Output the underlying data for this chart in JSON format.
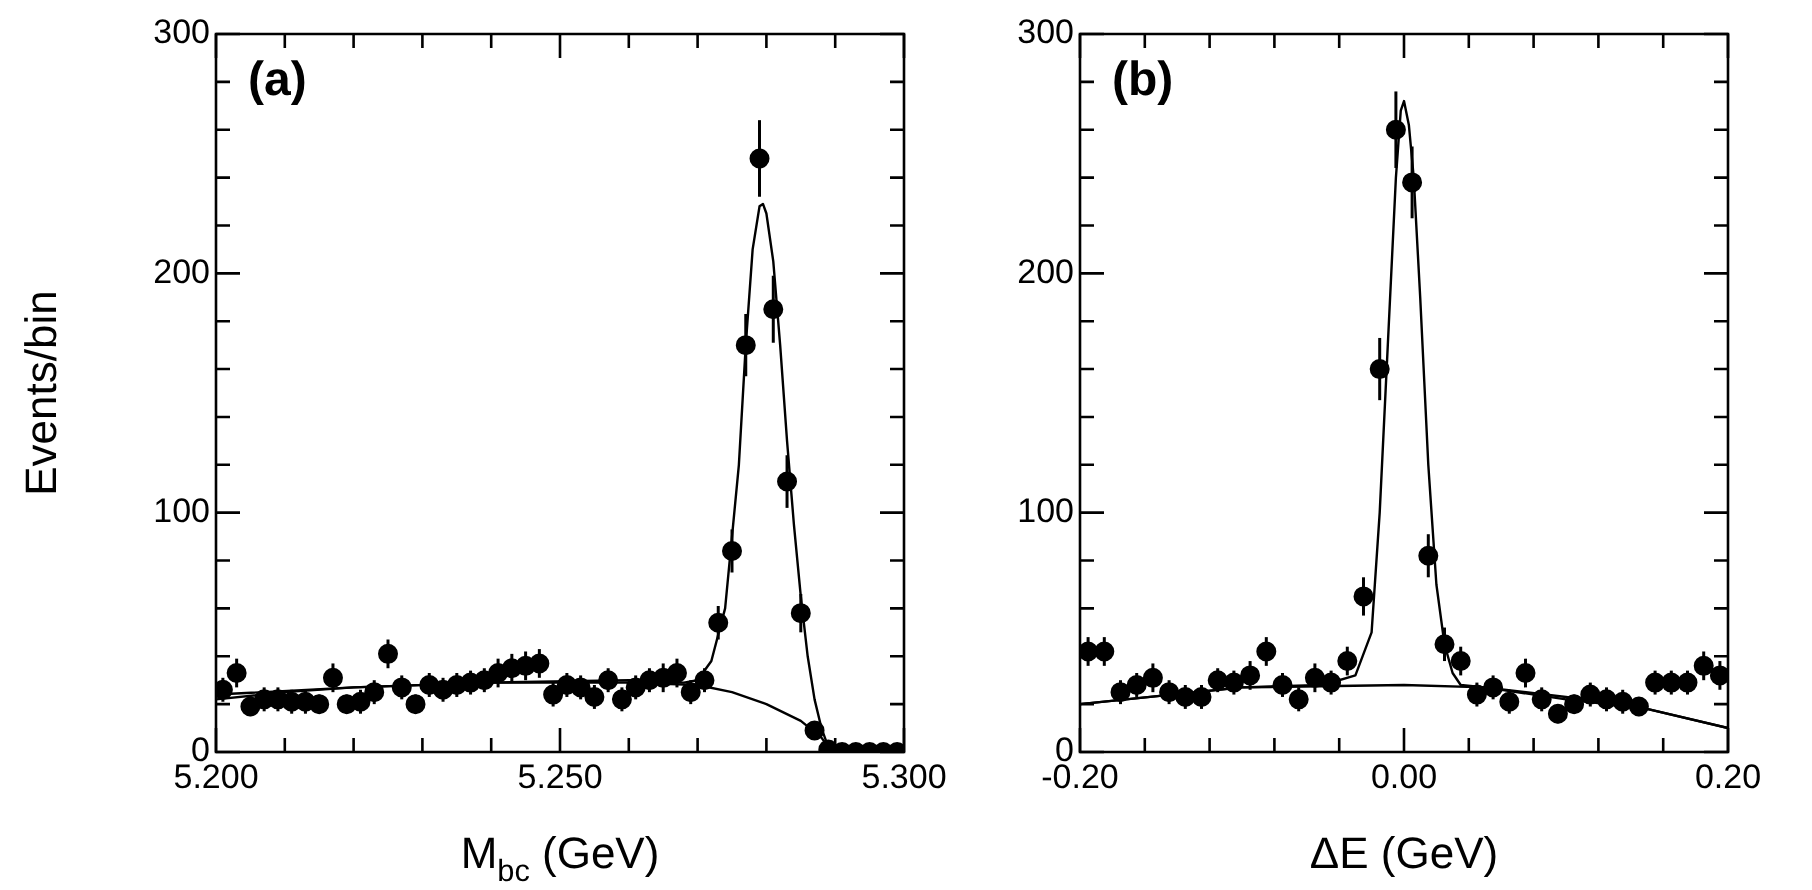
{
  "chart_data": [
    {
      "type": "scatter",
      "xlabel": "M$_{bc}$ (GeV)",
      "ylabel": "Events/bin",
      "annotations": [
        "(a)"
      ],
      "xlim": [
        5.2,
        5.3
      ],
      "xticks": [
        {
          "value": 5.2,
          "label": "5.200"
        },
        {
          "value": 5.21,
          "label": null
        },
        {
          "value": 5.22,
          "label": null
        },
        {
          "value": 5.23,
          "label": null
        },
        {
          "value": 5.24,
          "label": null
        },
        {
          "value": 5.25,
          "label": "5.250"
        },
        {
          "value": 5.26,
          "label": null
        },
        {
          "value": 5.27,
          "label": null
        },
        {
          "value": 5.28,
          "label": null
        },
        {
          "value": 5.29,
          "label": null
        },
        {
          "value": 5.3,
          "label": "5.300"
        }
      ],
      "ylim": [
        0,
        300
      ],
      "yticks": [
        0,
        {
          "value": 20,
          "label": null
        },
        {
          "value": 40,
          "label": null
        },
        {
          "value": 60,
          "label": null
        },
        {
          "value": 80,
          "label": null
        },
        100,
        {
          "value": 120,
          "label": null
        },
        {
          "value": 140,
          "label": null
        },
        {
          "value": 160,
          "label": null
        },
        {
          "value": 180,
          "label": null
        },
        200,
        {
          "value": 220,
          "label": null
        },
        {
          "value": 240,
          "label": null
        },
        {
          "value": 260,
          "label": null
        },
        {
          "value": 280,
          "label": null
        },
        300
      ],
      "series": [
        {
          "marker": "circle",
          "color": "#000000",
          "x": [
            5.201,
            5.203,
            5.205,
            5.207,
            5.209,
            5.211,
            5.213,
            5.215,
            5.217,
            5.219,
            5.221,
            5.223,
            5.225,
            5.227,
            5.229,
            5.231,
            5.233,
            5.235,
            5.237,
            5.239,
            5.241,
            5.243,
            5.245,
            5.247,
            5.249,
            5.251,
            5.253,
            5.255,
            5.257,
            5.259,
            5.261,
            5.263,
            5.265,
            5.267,
            5.269,
            5.271,
            5.273,
            5.275,
            5.277,
            5.279,
            5.281,
            5.283,
            5.285,
            5.287,
            5.289,
            5.291,
            5.293,
            5.295,
            5.297,
            5.299
          ],
          "values": [
            26,
            33,
            19,
            22,
            22,
            21,
            21,
            20,
            31,
            20,
            21,
            25,
            41,
            27,
            20,
            28,
            26,
            28,
            29,
            30,
            33,
            35,
            36,
            37,
            24,
            28,
            27,
            23,
            30,
            22,
            27,
            30,
            31,
            33,
            25,
            30,
            54,
            84,
            170,
            248,
            185,
            113,
            58,
            9,
            1,
            0,
            0,
            0,
            0,
            0
          ],
          "errors": [
            5,
            6,
            4,
            5,
            5,
            5,
            5,
            4,
            6,
            4,
            5,
            5,
            6,
            5,
            4,
            5,
            5,
            5,
            5,
            5,
            6,
            6,
            6,
            6,
            5,
            5,
            5,
            5,
            5,
            5,
            5,
            5,
            6,
            6,
            5,
            5,
            7,
            9,
            13,
            16,
            14,
            11,
            8,
            3,
            1,
            null,
            null,
            null,
            null,
            null
          ]
        },
        {
          "type": "line",
          "marker": "none",
          "color": "#000000",
          "x": [
            5.2,
            5.22,
            5.24,
            5.26,
            5.268,
            5.27,
            5.272,
            5.274,
            5.276,
            5.277,
            5.278,
            5.279,
            5.2795,
            5.28,
            5.281,
            5.282,
            5.283,
            5.284,
            5.285,
            5.286,
            5.287,
            5.288,
            5.289,
            5.29,
            5.3
          ],
          "values": [
            24,
            27,
            29,
            30,
            29,
            30,
            38,
            60,
            120,
            170,
            210,
            228,
            229,
            225,
            205,
            170,
            130,
            95,
            65,
            40,
            22,
            10,
            2,
            0,
            0
          ]
        },
        {
          "type": "line",
          "marker": "none",
          "color": "#000000",
          "x": [
            5.2,
            5.21,
            5.22,
            5.24,
            5.26,
            5.27,
            5.275,
            5.28,
            5.285,
            5.288,
            5.2895
          ],
          "values": [
            22,
            25,
            27,
            29,
            29,
            28,
            25,
            20,
            13,
            6,
            0
          ]
        }
      ]
    },
    {
      "type": "scatter",
      "xlabel": "ΔE (GeV)",
      "annotations": [
        "(b)"
      ],
      "xlim": [
        -0.2,
        0.2
      ],
      "xticks": [
        {
          "value": -0.2,
          "label": "-0.20"
        },
        {
          "value": -0.16,
          "label": null
        },
        {
          "value": -0.12,
          "label": null
        },
        {
          "value": -0.08,
          "label": null
        },
        {
          "value": -0.04,
          "label": null
        },
        {
          "value": 0,
          "label": "0.00"
        },
        {
          "value": 0.04,
          "label": null
        },
        {
          "value": 0.08,
          "label": null
        },
        {
          "value": 0.12,
          "label": null
        },
        {
          "value": 0.16,
          "label": null
        },
        {
          "value": 0.2,
          "label": "0.20"
        }
      ],
      "ylim": [
        0,
        300
      ],
      "yticks": [
        0,
        {
          "value": 20,
          "label": null
        },
        {
          "value": 40,
          "label": null
        },
        {
          "value": 60,
          "label": null
        },
        {
          "value": 80,
          "label": null
        },
        100,
        {
          "value": 120,
          "label": null
        },
        {
          "value": 140,
          "label": null
        },
        {
          "value": 160,
          "label": null
        },
        {
          "value": 180,
          "label": null
        },
        200,
        {
          "value": 220,
          "label": null
        },
        {
          "value": 240,
          "label": null
        },
        {
          "value": 260,
          "label": null
        },
        {
          "value": 280,
          "label": null
        },
        300
      ],
      "series": [
        {
          "marker": "circle",
          "color": "#000000",
          "x": [
            -0.195,
            -0.185,
            -0.175,
            -0.165,
            -0.155,
            -0.145,
            -0.135,
            -0.125,
            -0.115,
            -0.105,
            -0.095,
            -0.085,
            -0.075,
            -0.065,
            -0.055,
            -0.045,
            -0.035,
            -0.025,
            -0.015,
            -0.005,
            0.005,
            0.015,
            0.025,
            0.035,
            0.045,
            0.055,
            0.065,
            0.075,
            0.085,
            0.095,
            0.105,
            0.115,
            0.125,
            0.135,
            0.145,
            0.155,
            0.165,
            0.175,
            0.185,
            0.195
          ],
          "values": [
            42,
            42,
            25,
            28,
            31,
            25,
            23,
            23,
            30,
            29,
            32,
            42,
            28,
            22,
            31,
            29,
            38,
            65,
            160,
            260,
            238,
            82,
            45,
            38,
            24,
            27,
            21,
            33,
            22,
            16,
            20,
            24,
            22,
            21,
            19,
            29,
            29,
            29,
            36,
            32
          ],
          "errors": [
            6,
            6,
            5,
            5,
            6,
            5,
            5,
            5,
            5,
            5,
            6,
            6,
            5,
            5,
            6,
            5,
            6,
            8,
            13,
            16,
            15,
            9,
            7,
            6,
            5,
            5,
            5,
            6,
            5,
            4,
            4,
            5,
            5,
            5,
            4,
            5,
            5,
            5,
            6,
            6
          ]
        },
        {
          "type": "line",
          "marker": "none",
          "color": "#000000",
          "x": [
            -0.2,
            -0.1,
            -0.05,
            -0.03,
            -0.02,
            -0.015,
            -0.01,
            -0.005,
            -0.002,
            0,
            0.003,
            0.006,
            0.01,
            0.015,
            0.02,
            0.025,
            0.03,
            0.035,
            0.05,
            0.1,
            0.15,
            0.2
          ],
          "values": [
            20,
            27,
            28,
            32,
            50,
            100,
            170,
            240,
            268,
            272,
            262,
            240,
            190,
            120,
            70,
            45,
            33,
            28,
            27,
            22,
            18,
            10
          ]
        },
        {
          "type": "line",
          "marker": "none",
          "color": "#000000",
          "x": [
            -0.2,
            -0.1,
            0,
            0.05,
            0.1,
            0.15,
            0.2
          ],
          "values": [
            20,
            27,
            28,
            27,
            23,
            18,
            10
          ]
        }
      ]
    }
  ]
}
